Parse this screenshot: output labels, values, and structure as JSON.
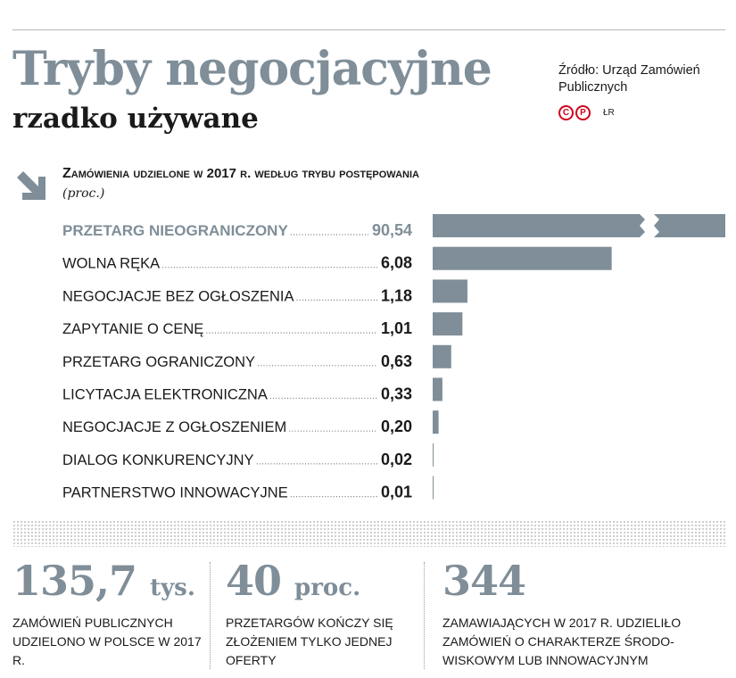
{
  "header": {
    "title": "Tryby negocjacyjne",
    "subtitle": "rzadko używane",
    "source": "Źródło: Urząd Zamówień Publicznych",
    "logo_letters": [
      "C",
      "P"
    ],
    "initials": "ŁR"
  },
  "chart_data": {
    "type": "bar",
    "orientation": "horizontal",
    "title_first": "Z",
    "title_rest": "amówienia udzielone w 2017 r. według trybu postępowania",
    "unit": "(proc.)",
    "categories": [
      "PRZETARG NIEOGRANICZONY",
      "WOLNA RĘKA",
      "NEGOCJACJE BEZ OGŁOSZENIA",
      "ZAPYTANIE O CENĘ",
      "PRZETARG OGRANICZONY",
      "LICYTACJA ELEKTRONICZNA",
      "NEGOCJACJE Z OGŁOSZENIEM",
      "DIALOG KONKURENCYJNY",
      "PARTNERSTWO INNOWACYJNE"
    ],
    "values": [
      90.54,
      6.08,
      1.18,
      1.01,
      0.63,
      0.33,
      0.2,
      0.02,
      0.01
    ],
    "value_labels": [
      "90,54",
      "6,08",
      "1,18",
      "1,01",
      "0,63",
      "0,33",
      "0,20",
      "0,02",
      "0,01"
    ],
    "highlight_index": 0,
    "broken_bar_index": 0,
    "bar_color": "#7f8e98",
    "highlight_label_color": "#7f8e98"
  },
  "stats": [
    {
      "number": "135,7",
      "unit": "tys.",
      "desc": "zamówień publicznych udzielono w Polsce w 2017 r."
    },
    {
      "number": "40",
      "unit": "proc.",
      "desc": "przetargów kończy się złożeniem tylko jednej oferty"
    },
    {
      "number": "344",
      "unit": "",
      "desc": "zamawiających w 2017 r. udzieliło zamówień o charakterze środo-wiskowym lub innowacyjnym"
    }
  ]
}
